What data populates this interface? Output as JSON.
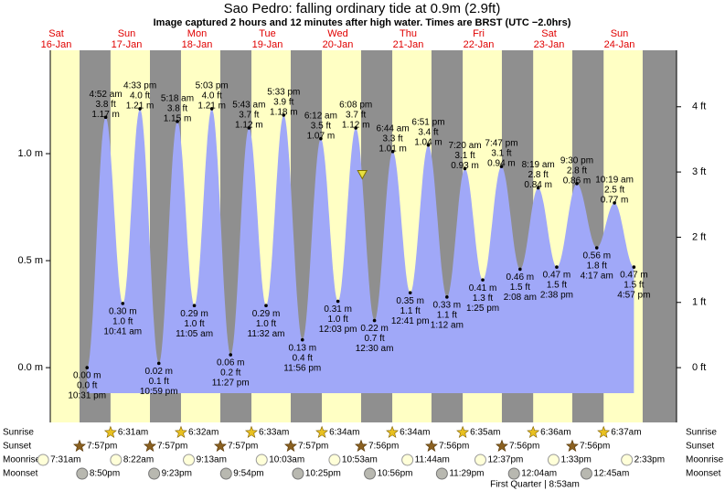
{
  "chart_data": {
    "type": "tide",
    "title": "Sao Pedro: falling  ordinary tide at 0.9m (2.9ft)",
    "subtitle": "Image captured 2 hours and 12 minutes after high water. Times are BRST (UTC −2.0hrs)",
    "ylim": [
      -0.256,
      1.483
    ],
    "yticks": [
      {
        "value": 0.0,
        "label": "0.0 m"
      },
      {
        "value": 0.5,
        "label": "0.5 m"
      },
      {
        "value": 1.0,
        "label": "1.0 m"
      }
    ],
    "y2lim": [
      -0.84,
      4.866
    ],
    "y2ticks": [
      {
        "value": 0,
        "label": "0 ft"
      },
      {
        "value": 1,
        "label": "1 ft"
      },
      {
        "value": 2,
        "label": "2 ft"
      },
      {
        "value": 3,
        "label": "3 ft"
      },
      {
        "value": 4,
        "label": "4 ft"
      }
    ],
    "fill_color": "#a0a8f8",
    "day_color": "#ffffc4",
    "night_color": "#8f8f8f",
    "row_labels": [
      "Sunrise",
      "Sunset",
      "Moonrise",
      "Moonset"
    ],
    "moon_phase": "First Quarter | 8:53am",
    "days": [
      {
        "name": "Sat",
        "date": "16-Jan",
        "sunrise": null,
        "sunset": "7:57pm",
        "moonrise": "7:31am",
        "moonset": "8:50pm",
        "tides": [
          {
            "time": "10:31 pm",
            "ft": "0.0 ft",
            "height": 0.0,
            "height_label": "0.00 m"
          }
        ]
      },
      {
        "name": "Sun",
        "date": "17-Jan",
        "sunrise": "6:31am",
        "sunset": "7:57pm",
        "moonrise": "8:22am",
        "moonset": "9:23pm",
        "tides": [
          {
            "time": "4:52 am",
            "ft": "3.8 ft",
            "height": 1.17,
            "height_label": "1.17 m"
          },
          {
            "time": "10:41 am",
            "ft": "1.0 ft",
            "height": 0.3,
            "height_label": "0.30 m"
          },
          {
            "time": "4:33 pm",
            "ft": "4.0 ft",
            "height": 1.21,
            "height_label": "1.21 m"
          },
          {
            "time": "10:59 pm",
            "ft": "0.1 ft",
            "height": 0.02,
            "height_label": "0.02 m"
          }
        ]
      },
      {
        "name": "Mon",
        "date": "18-Jan",
        "sunrise": "6:32am",
        "sunset": "7:57pm",
        "moonrise": "9:13am",
        "moonset": "9:54pm",
        "tides": [
          {
            "time": "5:18 am",
            "ft": "3.8 ft",
            "height": 1.15,
            "height_label": "1.15 m"
          },
          {
            "time": "11:05 am",
            "ft": "1.0 ft",
            "height": 0.29,
            "height_label": "0.29 m"
          },
          {
            "time": "5:03 pm",
            "ft": "4.0 ft",
            "height": 1.21,
            "height_label": "1.21 m"
          },
          {
            "time": "11:27 pm",
            "ft": "0.2 ft",
            "height": 0.06,
            "height_label": "0.06 m"
          }
        ]
      },
      {
        "name": "Tue",
        "date": "19-Jan",
        "sunrise": "6:33am",
        "sunset": "7:57pm",
        "moonrise": "10:03am",
        "moonset": "10:25pm",
        "tides": [
          {
            "time": "5:43 am",
            "ft": "3.7 ft",
            "height": 1.12,
            "height_label": "1.12 m"
          },
          {
            "time": "11:32 am",
            "ft": "1.0 ft",
            "height": 0.29,
            "height_label": "0.29 m"
          },
          {
            "time": "5:33 pm",
            "ft": "3.9 ft",
            "height": 1.18,
            "height_label": "1.18 m"
          },
          {
            "time": "11:56 pm",
            "ft": "0.4 ft",
            "height": 0.13,
            "height_label": "0.13 m"
          }
        ]
      },
      {
        "name": "Wed",
        "date": "20-Jan",
        "sunrise": "6:34am",
        "sunset": "7:56pm",
        "moonrise": "10:53am",
        "moonset": "10:56pm",
        "tides": [
          {
            "time": "6:12 am",
            "ft": "3.5 ft",
            "height": 1.07,
            "height_label": "1.07 m"
          },
          {
            "time": "12:03 pm",
            "ft": "1.0 ft",
            "height": 0.31,
            "height_label": "0.31 m"
          },
          {
            "time": "6:08 pm",
            "ft": "3.7 ft",
            "height": 1.12,
            "height_label": "1.12 m"
          }
        ]
      },
      {
        "name": "Thu",
        "date": "21-Jan",
        "sunrise": "6:34am",
        "sunset": "7:56pm",
        "moonrise": "11:44am",
        "moonset": "11:29pm",
        "tides": [
          {
            "time": "12:30 am",
            "ft": "0.7 ft",
            "height": 0.22,
            "height_label": "0.22 m"
          },
          {
            "time": "6:44 am",
            "ft": "3.3 ft",
            "height": 1.01,
            "height_label": "1.01 m"
          },
          {
            "time": "12:41 pm",
            "ft": "1.1 ft",
            "height": 0.35,
            "height_label": "0.35 m"
          },
          {
            "time": "6:51 pm",
            "ft": "3.4 ft",
            "height": 1.04,
            "height_label": "1.04 m"
          }
        ]
      },
      {
        "name": "Fri",
        "date": "22-Jan",
        "sunrise": "6:35am",
        "sunset": "7:56pm",
        "moonrise": "12:37pm",
        "moonset": null,
        "tides": [
          {
            "time": "1:12 am",
            "ft": "1.1 ft",
            "height": 0.33,
            "height_label": "0.33 m"
          },
          {
            "time": "7:20 am",
            "ft": "3.1 ft",
            "height": 0.93,
            "height_label": "0.93 m"
          },
          {
            "time": "1:25 pm",
            "ft": "1.3 ft",
            "height": 0.41,
            "height_label": "0.41 m"
          },
          {
            "time": "7:47 pm",
            "ft": "3.1 ft",
            "height": 0.94,
            "height_label": "0.94 m"
          }
        ]
      },
      {
        "name": "Sat",
        "date": "23-Jan",
        "sunrise": "6:36am",
        "sunset": "7:56pm",
        "moonrise": "1:33pm",
        "moonset": "12:04am",
        "tides": [
          {
            "time": "2:08 am",
            "ft": "1.5 ft",
            "height": 0.46,
            "height_label": "0.46 m"
          },
          {
            "time": "8:19 am",
            "ft": "2.8 ft",
            "height": 0.84,
            "height_label": "0.84 m"
          },
          {
            "time": "2:38 pm",
            "ft": "1.5 ft",
            "height": 0.47,
            "height_label": "0.47 m"
          },
          {
            "time": "9:30 pm",
            "ft": "2.8 ft",
            "height": 0.86,
            "height_label": "0.86 m"
          }
        ]
      },
      {
        "name": "Sun",
        "date": "24-Jan",
        "sunrise": "6:37am",
        "sunset": null,
        "moonrise": "2:33pm",
        "moonset": "12:45am",
        "tides": [
          {
            "time": "4:17 am",
            "ft": "1.8 ft",
            "height": 0.56,
            "height_label": "0.56 m"
          },
          {
            "time": "10:19 am",
            "ft": "2.5 ft",
            "height": 0.77,
            "height_label": "0.77 m"
          },
          {
            "time": "4:57 pm",
            "ft": "1.5 ft",
            "height": 0.47,
            "height_label": "0.47 m"
          }
        ]
      }
    ]
  }
}
